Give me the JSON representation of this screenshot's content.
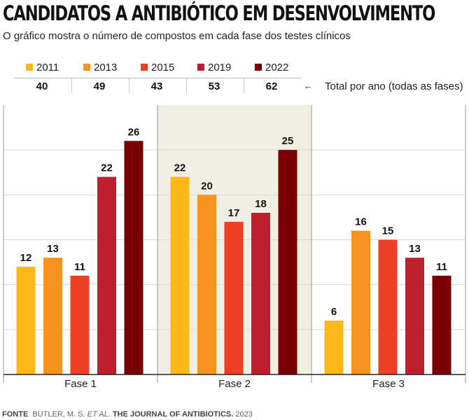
{
  "header": {
    "title": "CANDIDATOS A ANTIBIÓTICO EM DESENVOLVIMENTO",
    "subtitle": "O gráfico mostra o número de compostos em cada fase dos testes clínicos"
  },
  "totals": {
    "label": "Total por ano (todas as fases)",
    "arrow": "←",
    "values": [
      "40",
      "49",
      "43",
      "53",
      "62"
    ]
  },
  "chart_data": {
    "type": "bar",
    "categories": [
      "Fase 1",
      "Fase 2",
      "Fase 3"
    ],
    "series": [
      {
        "name": "2011",
        "color": "#fcb816",
        "values": [
          12,
          22,
          6
        ]
      },
      {
        "name": "2013",
        "color": "#f6921e",
        "values": [
          13,
          20,
          16
        ]
      },
      {
        "name": "2015",
        "color": "#ef4026",
        "values": [
          11,
          17,
          15
        ]
      },
      {
        "name": "2019",
        "color": "#be1e2d",
        "values": [
          22,
          18,
          13
        ]
      },
      {
        "name": "2022",
        "color": "#790000",
        "values": [
          26,
          25,
          11
        ]
      }
    ],
    "ylim": [
      0,
      30
    ],
    "grid": true,
    "legend_position": "top",
    "highlighted_category": "Fase 2",
    "highlight_color": "#f1efe3"
  },
  "source": {
    "label": "FONTE",
    "author": "BUTLER, M. S.",
    "etal": "ET AL.",
    "journal": "THE JOURNAL OF ANTIBIOTICS.",
    "year": "2023"
  }
}
